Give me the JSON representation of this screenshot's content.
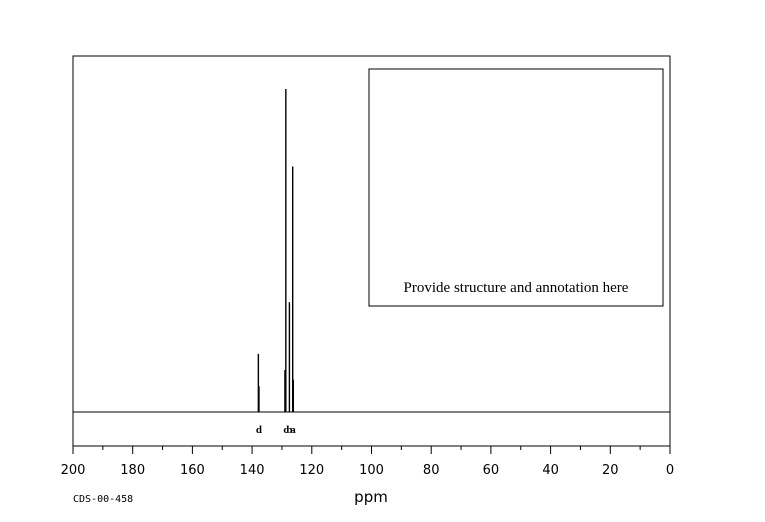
{
  "chart_data": {
    "type": "line",
    "title": "",
    "xlabel": "ppm",
    "ylabel": "",
    "xlim": [
      200,
      0
    ],
    "x_reversed": true,
    "x_ticks": [
      200,
      180,
      160,
      140,
      120,
      100,
      80,
      60,
      40,
      20,
      0
    ],
    "x_tick_labels": [
      "200",
      "180",
      "160",
      "140",
      "120",
      "100",
      "80",
      "60",
      "40",
      "20",
      "0"
    ],
    "minor_tick_step": 10,
    "grid": false,
    "peaks": [
      {
        "ppm": 137.9,
        "height": 0.18,
        "label": null
      },
      {
        "ppm": 137.7,
        "height": 0.08,
        "label": null
      },
      {
        "ppm": 129.0,
        "height": 0.13,
        "label": null
      },
      {
        "ppm": 128.7,
        "height": 1.0,
        "label": null
      },
      {
        "ppm": 127.5,
        "height": 0.34,
        "label": null
      },
      {
        "ppm": 126.4,
        "height": 0.76,
        "label": null
      },
      {
        "ppm": 126.2,
        "height": 0.1,
        "label": null
      }
    ],
    "peak_labels": [
      {
        "text": "d",
        "ppm": 137.7
      },
      {
        "text": "c",
        "ppm": 128.7
      },
      {
        "text": "b",
        "ppm": 127.5
      },
      {
        "text": "a",
        "ppm": 126.3
      }
    ],
    "annotation_box_text": "Provide structure and annotation here",
    "footer_code": "CDS-00-458"
  }
}
